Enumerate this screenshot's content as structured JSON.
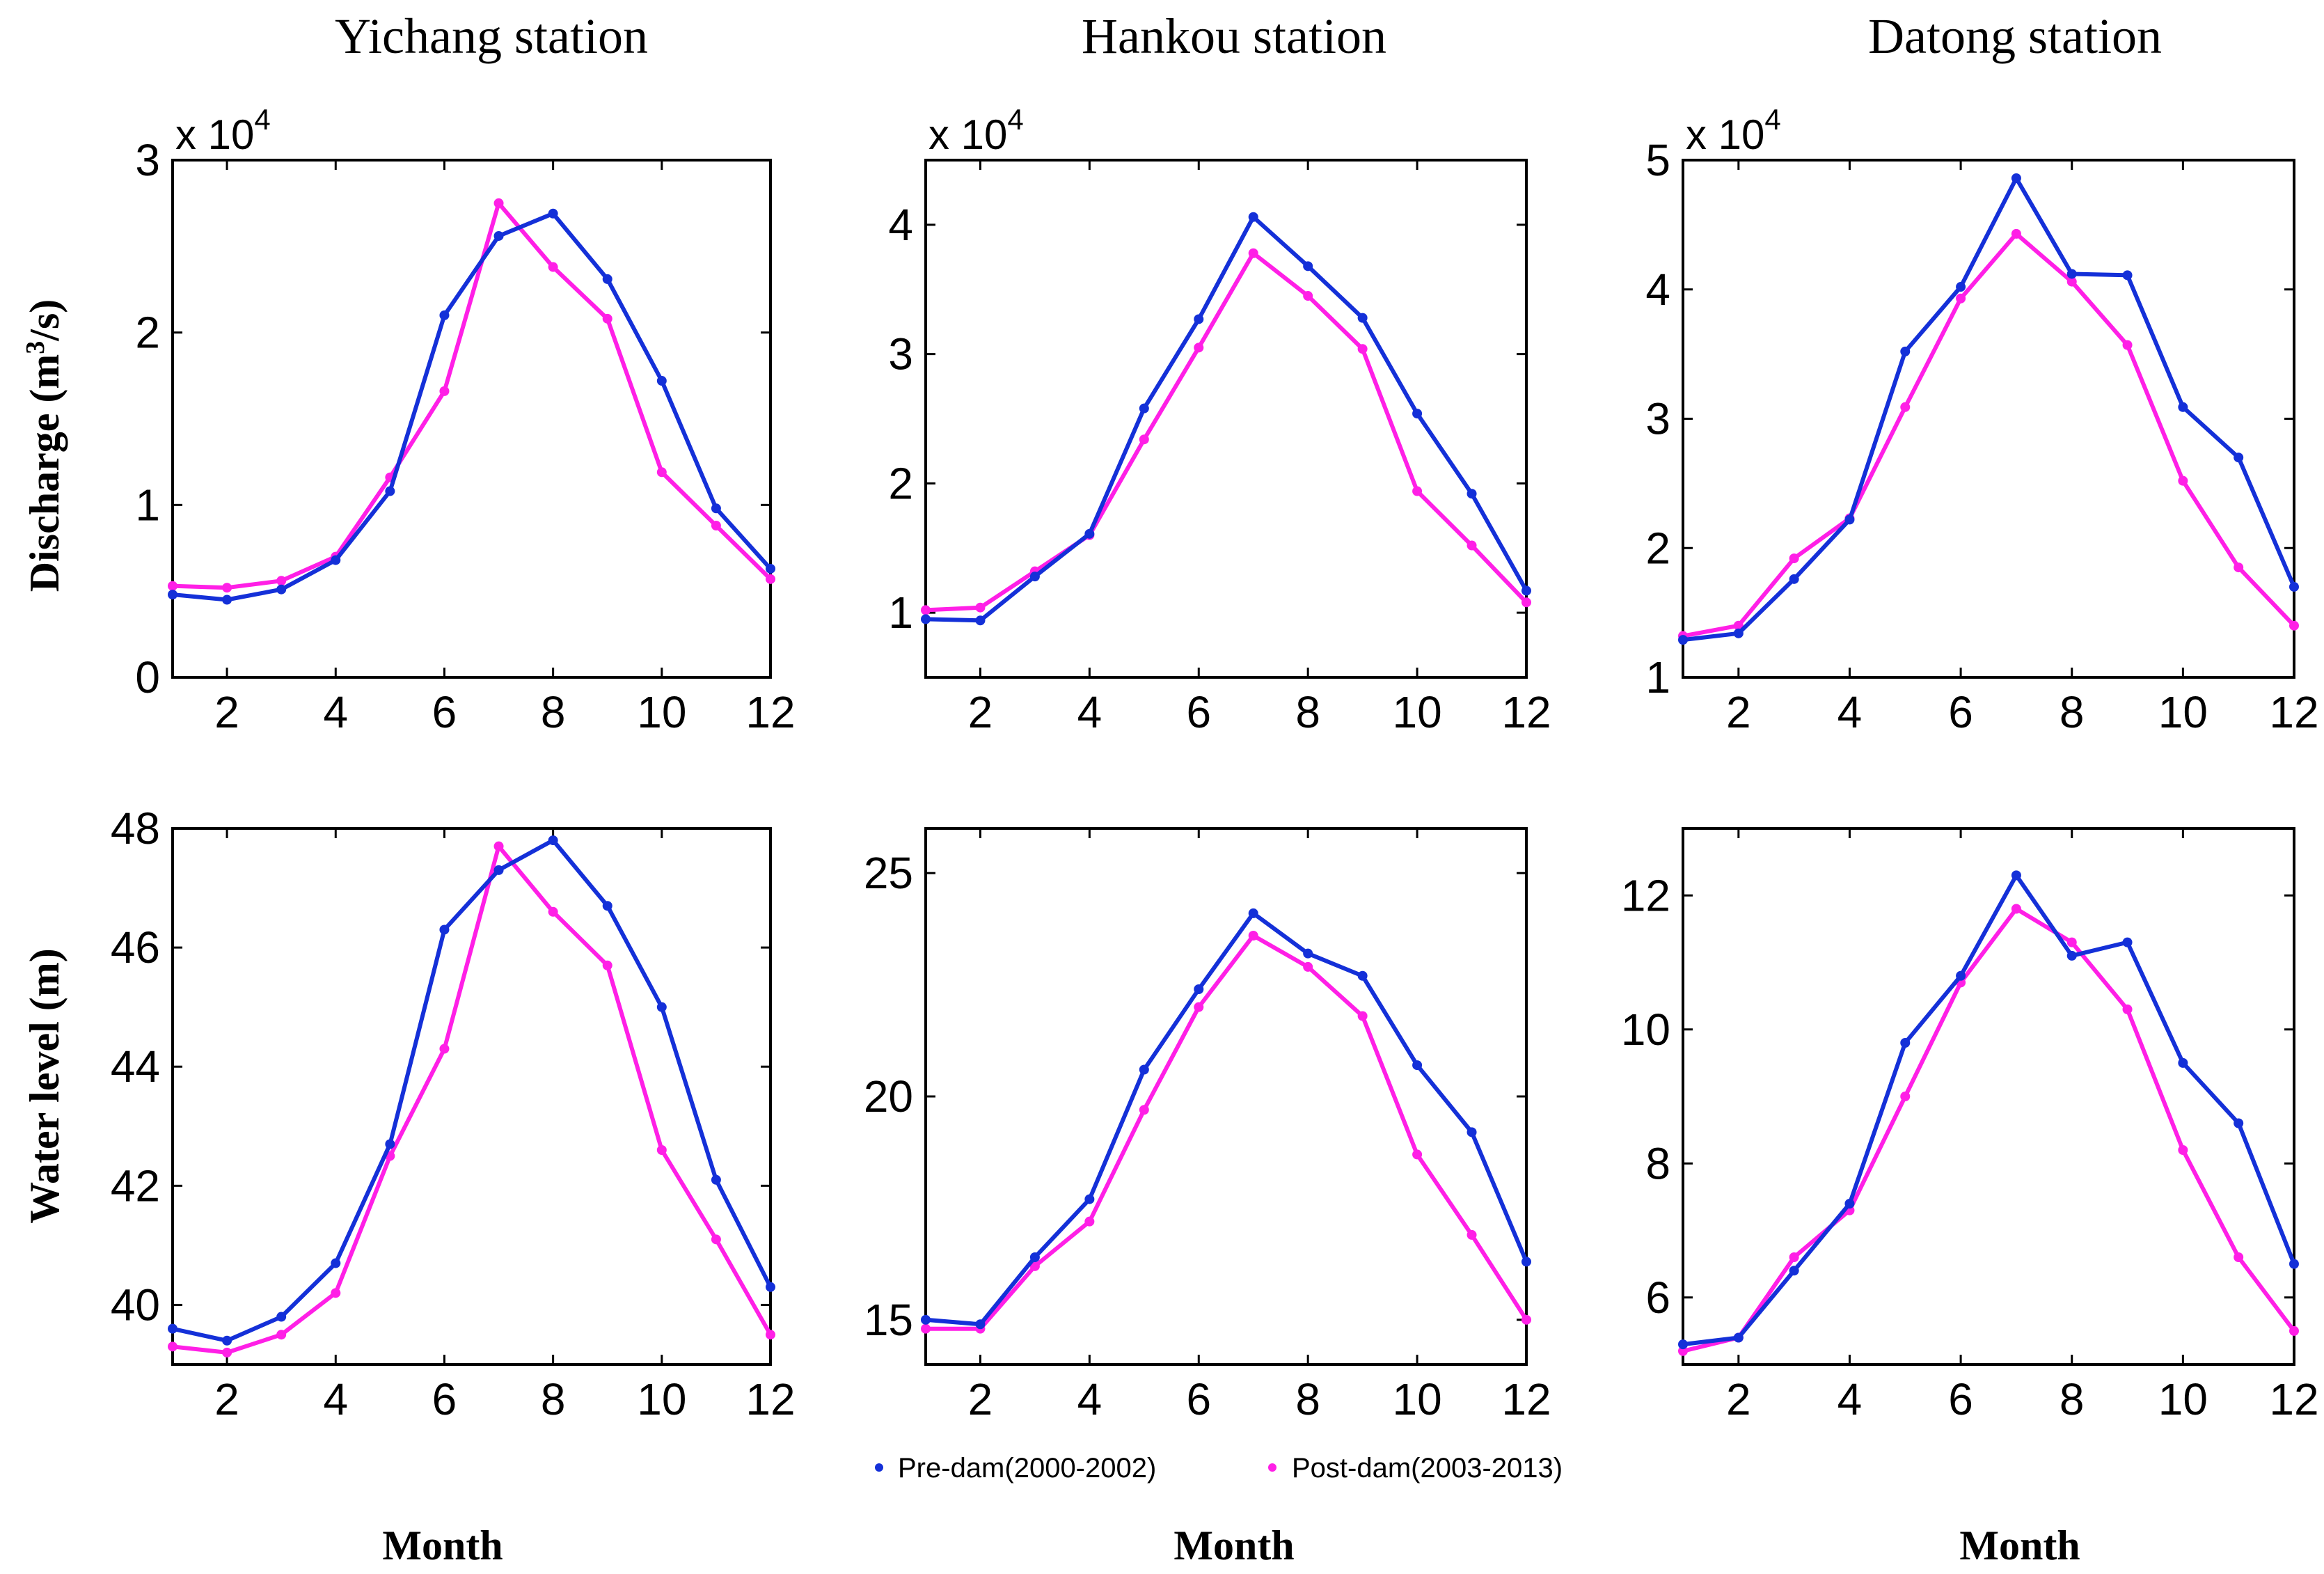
{
  "legend": [
    {
      "name": "Pre-dam(2000-2002)",
      "color": "#1430d8"
    },
    {
      "name": "Post-dam(2003-2013)",
      "color": "#ff1fe6"
    }
  ],
  "row_labels": {
    "discharge": "Discharge (m3/s)",
    "discharge_base": "Discharge (m",
    "discharge_sup": "3",
    "discharge_tail": "/s)",
    "water_level": "Water level (m)"
  },
  "x_label": "Month",
  "chart_data": [
    {
      "type": "line",
      "id": "yichang-discharge",
      "title": "Yichang station",
      "xlabel": "Month",
      "ylabel": "Discharge (m3/s)",
      "multiplier": "x 10",
      "exponent": "4",
      "x": [
        1,
        2,
        3,
        4,
        5,
        6,
        7,
        8,
        9,
        10,
        11,
        12
      ],
      "xlim": [
        1,
        12
      ],
      "xticks": [
        2,
        4,
        6,
        8,
        10,
        12
      ],
      "ylim": [
        0,
        3
      ],
      "yticks": [
        0,
        1,
        2,
        3
      ],
      "series": [
        {
          "name": "Pre-dam(2000-2002)",
          "values": [
            0.48,
            0.45,
            0.51,
            0.68,
            1.08,
            2.1,
            2.56,
            2.69,
            2.31,
            1.72,
            0.98,
            0.63
          ]
        },
        {
          "name": "Post-dam(2003-2013)",
          "values": [
            0.53,
            0.52,
            0.56,
            0.7,
            1.16,
            1.66,
            2.75,
            2.38,
            2.08,
            1.19,
            0.88,
            0.57
          ]
        }
      ]
    },
    {
      "type": "line",
      "id": "hankou-discharge",
      "title": "Hankou station",
      "xlabel": "Month",
      "ylabel": "Discharge (m3/s)",
      "multiplier": "x 10",
      "exponent": "4",
      "x": [
        1,
        2,
        3,
        4,
        5,
        6,
        7,
        8,
        9,
        10,
        11,
        12
      ],
      "xlim": [
        1,
        12
      ],
      "xticks": [
        2,
        4,
        6,
        8,
        10,
        12
      ],
      "ylim": [
        0.5,
        4.5
      ],
      "yticks": [
        1,
        2,
        3,
        4
      ],
      "series": [
        {
          "name": "Pre-dam(2000-2002)",
          "values": [
            0.95,
            0.94,
            1.28,
            1.61,
            2.58,
            3.27,
            4.06,
            3.68,
            3.28,
            2.54,
            1.92,
            1.17
          ]
        },
        {
          "name": "Post-dam(2003-2013)",
          "values": [
            1.02,
            1.04,
            1.32,
            1.6,
            2.34,
            3.05,
            3.78,
            3.45,
            3.04,
            1.94,
            1.52,
            1.08
          ]
        }
      ]
    },
    {
      "type": "line",
      "id": "datong-discharge",
      "title": "Datong station",
      "xlabel": "Month",
      "ylabel": "Discharge (m3/s)",
      "multiplier": "x 10",
      "exponent": "4",
      "x": [
        1,
        2,
        3,
        4,
        5,
        6,
        7,
        8,
        9,
        10,
        11,
        12
      ],
      "xlim": [
        1,
        12
      ],
      "xticks": [
        2,
        4,
        6,
        8,
        10,
        12
      ],
      "ylim": [
        1,
        5
      ],
      "yticks": [
        1,
        2,
        3,
        4,
        5
      ],
      "series": [
        {
          "name": "Pre-dam(2000-2002)",
          "values": [
            1.29,
            1.34,
            1.76,
            2.22,
            3.52,
            4.02,
            4.86,
            4.12,
            4.11,
            3.09,
            2.7,
            1.7
          ]
        },
        {
          "name": "Post-dam(2003-2013)",
          "values": [
            1.32,
            1.4,
            1.92,
            2.23,
            3.09,
            3.93,
            4.43,
            4.06,
            3.57,
            2.52,
            1.85,
            1.4
          ]
        }
      ]
    },
    {
      "type": "line",
      "id": "yichang-water-level",
      "title": "Yichang station",
      "xlabel": "Month",
      "ylabel": "Water level (m)",
      "x": [
        1,
        2,
        3,
        4,
        5,
        6,
        7,
        8,
        9,
        10,
        11,
        12
      ],
      "xlim": [
        1,
        12
      ],
      "xticks": [
        2,
        4,
        6,
        8,
        10,
        12
      ],
      "ylim": [
        39,
        48
      ],
      "yticks": [
        40,
        42,
        44,
        46,
        48
      ],
      "series": [
        {
          "name": "Pre-dam(2000-2002)",
          "values": [
            39.6,
            39.4,
            39.8,
            40.7,
            42.7,
            46.3,
            47.3,
            47.8,
            46.7,
            45.0,
            42.1,
            40.3
          ]
        },
        {
          "name": "Post-dam(2003-2013)",
          "values": [
            39.3,
            39.2,
            39.5,
            40.2,
            42.5,
            44.3,
            47.7,
            46.6,
            45.7,
            42.6,
            41.1,
            39.5
          ]
        }
      ]
    },
    {
      "type": "line",
      "id": "hankou-water-level",
      "title": "Hankou station",
      "xlabel": "Month",
      "ylabel": "Water level (m)",
      "x": [
        1,
        2,
        3,
        4,
        5,
        6,
        7,
        8,
        9,
        10,
        11,
        12
      ],
      "xlim": [
        1,
        12
      ],
      "xticks": [
        2,
        4,
        6,
        8,
        10,
        12
      ],
      "ylim": [
        14,
        26
      ],
      "yticks": [
        15,
        20,
        25
      ],
      "series": [
        {
          "name": "Pre-dam(2000-2002)",
          "values": [
            15.0,
            14.9,
            16.4,
            17.7,
            20.6,
            22.4,
            24.1,
            23.2,
            22.7,
            20.7,
            19.2,
            16.3
          ]
        },
        {
          "name": "Post-dam(2003-2013)",
          "values": [
            14.8,
            14.8,
            16.2,
            17.2,
            19.7,
            22.0,
            23.6,
            22.9,
            21.8,
            18.7,
            16.9,
            15.0
          ]
        }
      ]
    },
    {
      "type": "line",
      "id": "datong-water-level",
      "title": "Datong station",
      "xlabel": "Month",
      "ylabel": "Water level (m)",
      "x": [
        1,
        2,
        3,
        4,
        5,
        6,
        7,
        8,
        9,
        10,
        11,
        12
      ],
      "xlim": [
        1,
        12
      ],
      "xticks": [
        2,
        4,
        6,
        8,
        10,
        12
      ],
      "ylim": [
        5,
        13
      ],
      "yticks": [
        6,
        8,
        10,
        12
      ],
      "series": [
        {
          "name": "Pre-dam(2000-2002)",
          "values": [
            5.3,
            5.4,
            6.4,
            7.4,
            9.8,
            10.8,
            12.3,
            11.1,
            11.3,
            9.5,
            8.6,
            6.5
          ]
        },
        {
          "name": "Post-dam(2003-2013)",
          "values": [
            5.2,
            5.4,
            6.6,
            7.3,
            9.0,
            10.7,
            11.8,
            11.3,
            10.3,
            8.2,
            6.6,
            5.5
          ]
        }
      ]
    }
  ]
}
